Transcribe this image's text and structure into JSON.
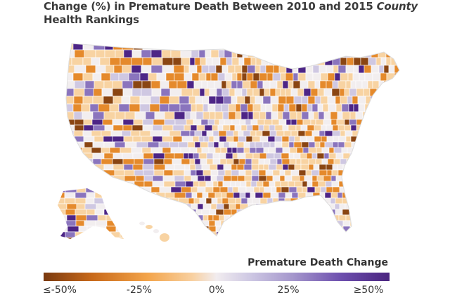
{
  "title": {
    "line1": "Change (%) in Premature Death Between 2010 and 2015",
    "line1_italic": "County",
    "line2_italic": "Health Rankings"
  },
  "legend": {
    "title": "Premature Death Change",
    "ticks": [
      "≤-50%",
      "-25%",
      "0%",
      "25%",
      "≥50%"
    ],
    "scale_colors": [
      "#7a3a10",
      "#c8691a",
      "#f3a44a",
      "#f8d0a0",
      "#f1ecef",
      "#cdc7e3",
      "#a597cc",
      "#6d4fae",
      "#4a247f"
    ]
  },
  "colors": {
    "strong_decrease": "#8a4512",
    "decrease": "#e58a2c",
    "slight_decrease": "#f8d3a2",
    "neutral": "#f2eeef",
    "slight_increase": "#cfc8e2",
    "increase": "#8a74bd",
    "strong_increase": "#4d2586",
    "border": "#ffffff"
  }
}
